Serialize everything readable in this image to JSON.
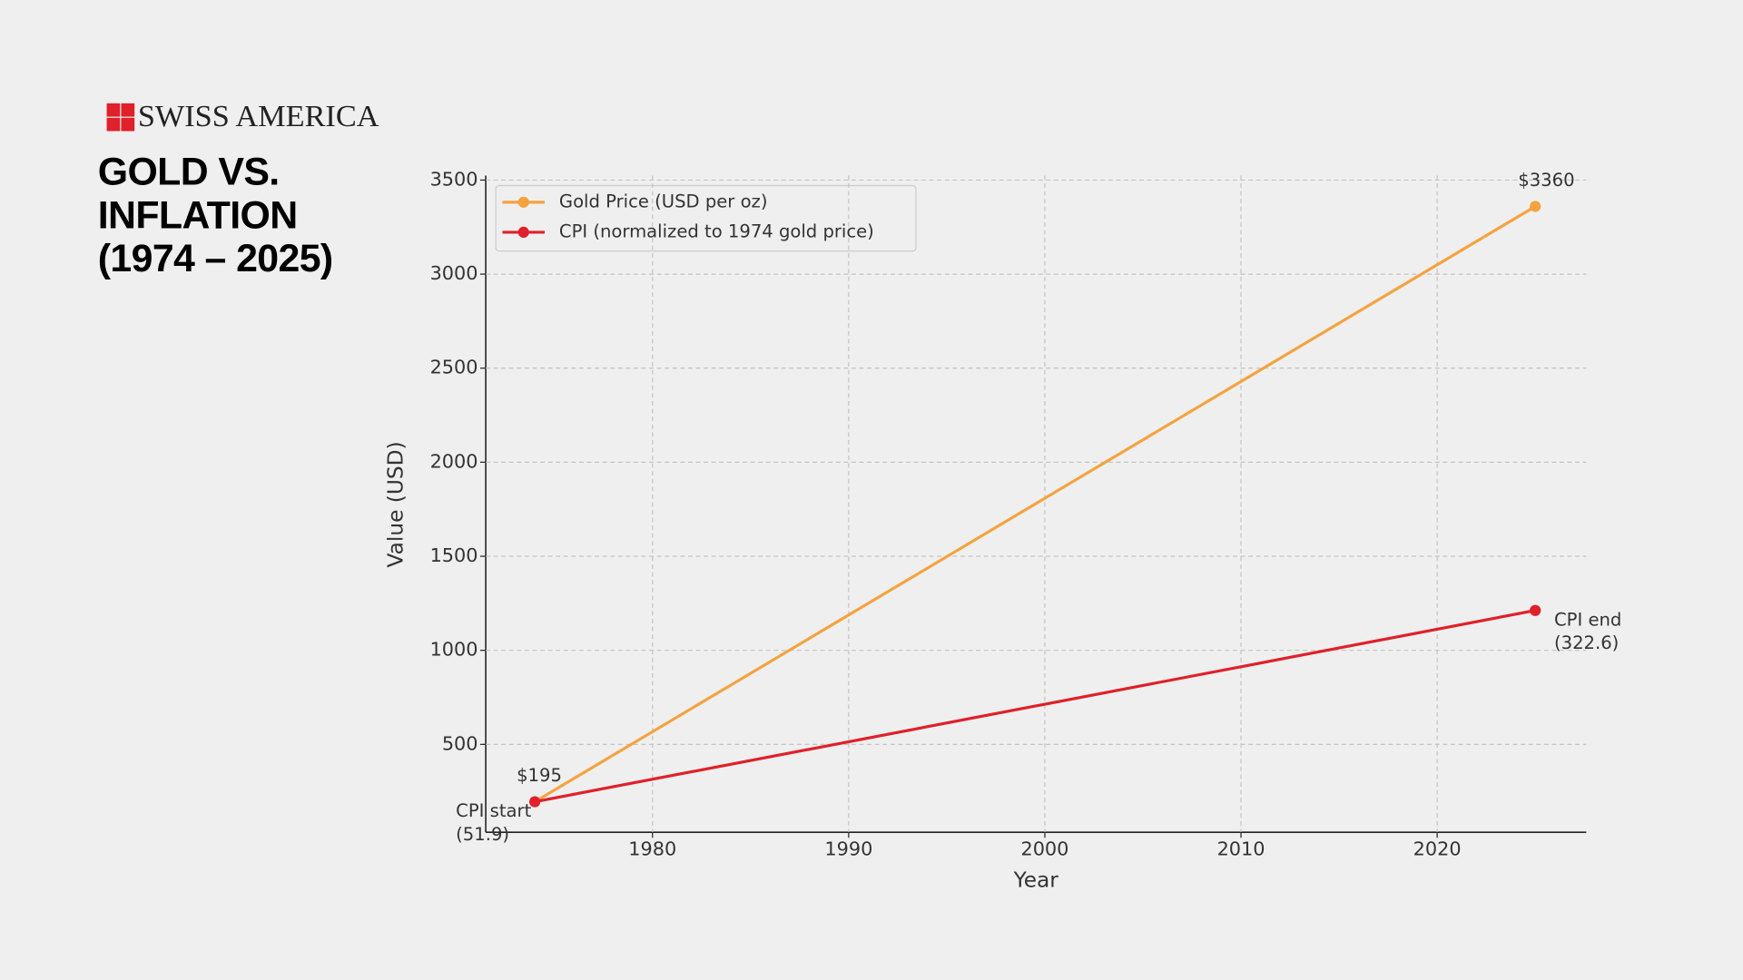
{
  "brand": "SWISS AMERICA",
  "chart_data": {
    "type": "line",
    "title": [
      "GOLD VS.",
      "INFLATION",
      "(1974 – 2025)"
    ],
    "x_label": "Year",
    "y_label": "Value (USD)",
    "x": [
      1974,
      2025
    ],
    "series": [
      {
        "name": "Gold Price (USD per oz)",
        "color": "#f4a340",
        "values": [
          195,
          3360
        ],
        "value_labels": [
          "$195",
          "$3360"
        ]
      },
      {
        "name": "CPI (normalized to 1974 gold price)",
        "color": "#e0202a",
        "values": [
          195,
          1212
        ]
      }
    ],
    "annotations": [
      [
        "CPI start",
        "(51.9)"
      ],
      [
        "CPI end",
        "(322.6)"
      ]
    ],
    "xlim": [
      1971.5,
      2027.6
    ],
    "xticks": [
      1980,
      1990,
      2000,
      2010,
      2020
    ],
    "ylim": [
      33,
      3524
    ],
    "yticks": [
      500,
      1000,
      1500,
      2000,
      2500,
      3000,
      3500
    ],
    "grid": true,
    "legend": "upper left"
  }
}
